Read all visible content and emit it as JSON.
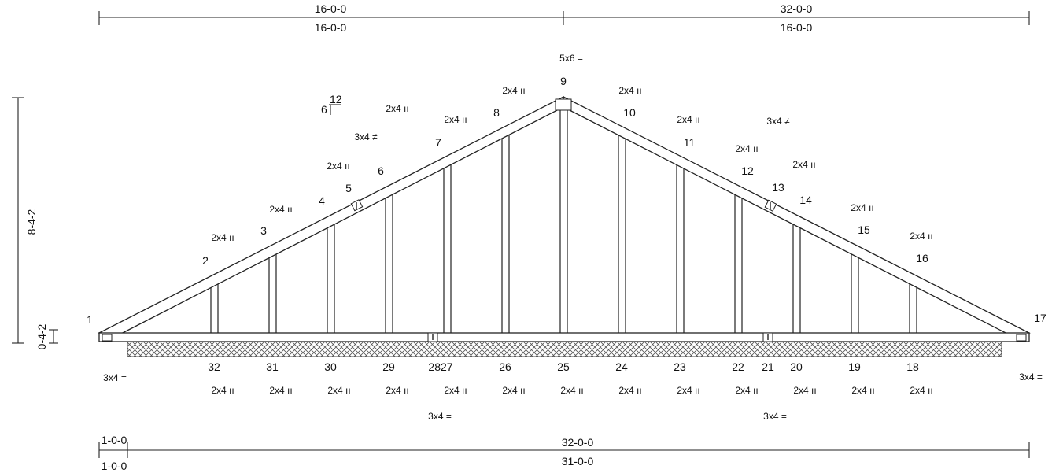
{
  "dimensions": {
    "top_left": [
      "16-0-0",
      "16-0-0"
    ],
    "top_right": [
      "32-0-0",
      "16-0-0"
    ],
    "bottom_overhang": [
      "1-0-0",
      "1-0-0"
    ],
    "bottom_span": [
      "32-0-0",
      "31-0-0"
    ],
    "height_total": "8-4-2",
    "heel_height": "0-4-2"
  },
  "pitch": {
    "rise": "6",
    "run": "12"
  },
  "joints": {
    "top": [
      {
        "label": "1"
      },
      {
        "label": "2"
      },
      {
        "label": "3"
      },
      {
        "label": "4"
      },
      {
        "label": "5"
      },
      {
        "label": "6"
      },
      {
        "label": "7"
      },
      {
        "label": "8"
      },
      {
        "label": "9"
      },
      {
        "label": "10"
      },
      {
        "label": "11"
      },
      {
        "label": "12"
      },
      {
        "label": "13"
      },
      {
        "label": "14"
      },
      {
        "label": "15"
      },
      {
        "label": "16"
      },
      {
        "label": "17"
      }
    ],
    "bottom": [
      {
        "label": "32"
      },
      {
        "label": "31"
      },
      {
        "label": "30"
      },
      {
        "label": "29"
      },
      {
        "label": "2827"
      },
      {
        "label": "26"
      },
      {
        "label": "25"
      },
      {
        "label": "24"
      },
      {
        "label": "23"
      },
      {
        "label": "22"
      },
      {
        "label": "21"
      },
      {
        "label": "20"
      },
      {
        "label": "19"
      },
      {
        "label": "18"
      }
    ]
  },
  "plates": {
    "peak": "5x6 =",
    "top": [
      {
        "text": "2x4 ıı"
      },
      {
        "text": "2x4 ıı"
      },
      {
        "text": "2x4 ıı"
      },
      {
        "text": "3x4 ≠"
      },
      {
        "text": "2x4 ıı"
      },
      {
        "text": "2x4 ıı"
      },
      {
        "text": "2x4 ıı"
      },
      {
        "text": "2x4 ıı"
      },
      {
        "text": "2x4 ıı"
      },
      {
        "text": "3x4 ≠"
      },
      {
        "text": "2x4 ıı"
      },
      {
        "text": "2x4 ıı"
      },
      {
        "text": "2x4 ıı"
      },
      {
        "text": "2x4 ıı"
      }
    ],
    "bottom_row": [
      "2x4 ıı",
      "2x4 ıı",
      "2x4 ıı",
      "2x4 ıı",
      "2x4 ıı",
      "2x4 ıı",
      "2x4 ıı",
      "2x4 ıı",
      "2x4 ıı",
      "2x4 ıı",
      "2x4 ıı",
      "2x4 ıı",
      "2x4 ıı"
    ],
    "splice_left": "3x4 =",
    "splice_right": "3x4 =",
    "heel_left": "3x4 =",
    "heel_right": "3x4 ="
  },
  "colors": {
    "line": "#222222",
    "hatch": "#555555",
    "background": "#ffffff"
  }
}
